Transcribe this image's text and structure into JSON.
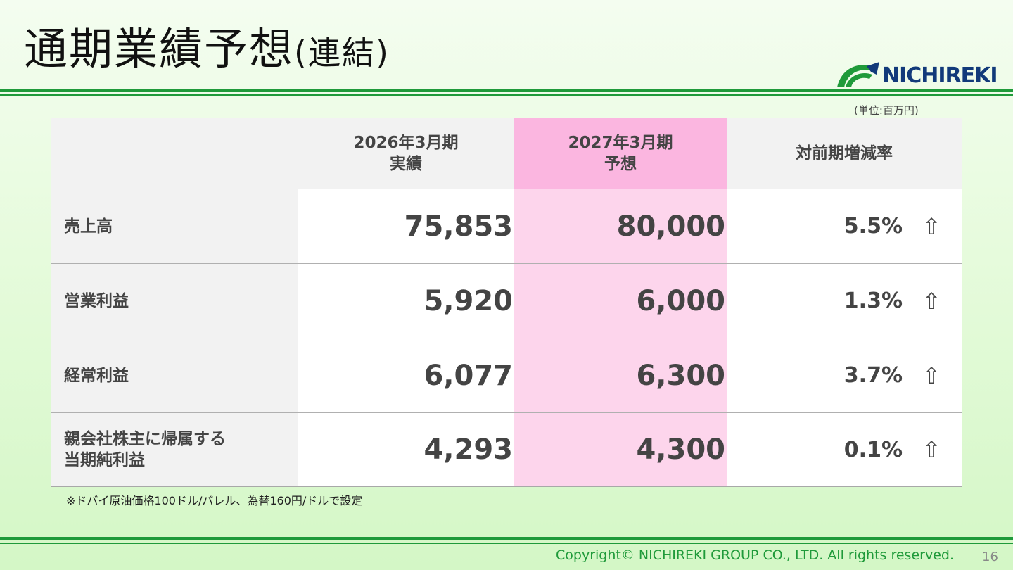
{
  "slide": {
    "title": "通期業績予想",
    "title_paren": "(連結)",
    "logo_text": "NICHIREKI",
    "unit": "(単位:百万円)",
    "note": "※ドバイ原油価格100ドル/バレル、為替160円/ドルで設定",
    "copyright": "Copyright© NICHIREKI GROUP CO., LTD. All rights reserved.",
    "page_number": "16"
  },
  "table": {
    "headers": [
      {
        "line1": "2026年3月期",
        "line2": "実績"
      },
      {
        "line1": "2027年3月期",
        "line2": "予想"
      },
      {
        "line1": "対前期増減率",
        "line2": ""
      }
    ],
    "rows": [
      {
        "label1": "売上高",
        "label2": "",
        "actual": "75,853",
        "forecast": "80,000",
        "rate": "5.5%",
        "arrow": "⇧"
      },
      {
        "label1": "営業利益",
        "label2": "",
        "actual": "5,920",
        "forecast": "6,000",
        "rate": "1.3%",
        "arrow": "⇧"
      },
      {
        "label1": "経常利益",
        "label2": "",
        "actual": "6,077",
        "forecast": "6,300",
        "rate": "3.7%",
        "arrow": "⇧"
      },
      {
        "label1": "親会社株主に帰属する",
        "label2": "当期純利益",
        "actual": "4,293",
        "forecast": "4,300",
        "rate": "0.1%",
        "arrow": "⇧"
      }
    ]
  },
  "colors": {
    "accent_green": "#1f9a3a",
    "forecast_highlight": "#fdd5ec",
    "forecast_header": "#fbb6e0",
    "logo_navy": "#123a7a"
  }
}
